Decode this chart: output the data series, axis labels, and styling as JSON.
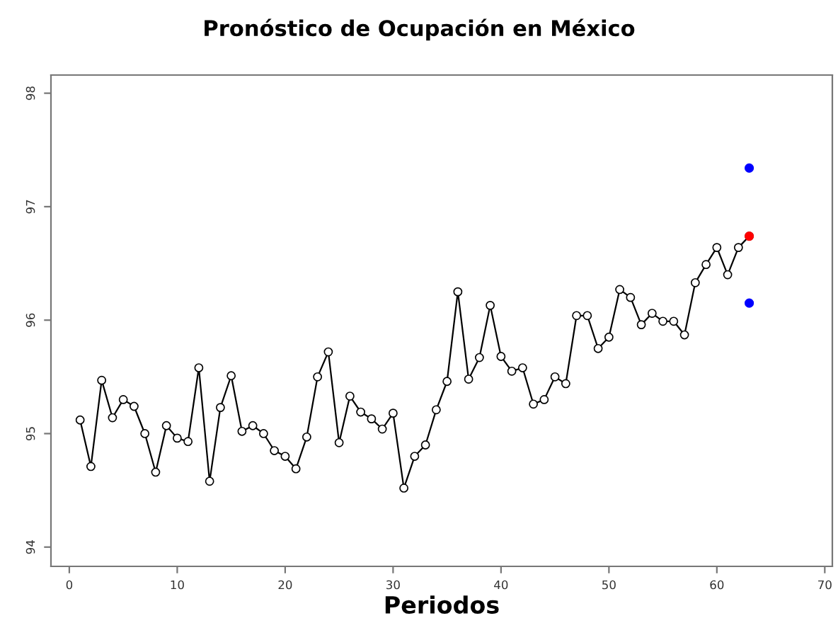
{
  "chart_data": {
    "type": "line",
    "title": "Pronóstico de Ocupación en México",
    "xlabel": "Periodos",
    "xlim": [
      -1.7,
      70.7
    ],
    "xticks": [
      0,
      10,
      20,
      30,
      40,
      50,
      60,
      70
    ],
    "ylim": [
      93.83,
      98.16
    ],
    "yticks": [
      94,
      95,
      96,
      97,
      98
    ],
    "grid": false,
    "legend": false,
    "series": [
      {
        "marker": "circle",
        "color": "#000000",
        "x": [
          1,
          2,
          3,
          4,
          5,
          6,
          7,
          8,
          9,
          10,
          11,
          12,
          13,
          14,
          15,
          16,
          17,
          18,
          19,
          20,
          21,
          22,
          23,
          24,
          25,
          26,
          27,
          28,
          29,
          30,
          31,
          32,
          33,
          34,
          35,
          36,
          37,
          38,
          39,
          40,
          41,
          42,
          43,
          44,
          45,
          46,
          47,
          48,
          49,
          50,
          51,
          52,
          53,
          54,
          55,
          56,
          57,
          58,
          59,
          60,
          61,
          62,
          63
        ],
        "values": [
          95.12,
          94.71,
          95.47,
          95.14,
          95.3,
          95.24,
          95.0,
          94.66,
          95.07,
          94.96,
          94.93,
          95.58,
          94.58,
          95.23,
          95.51,
          95.02,
          95.07,
          95.0,
          94.85,
          94.8,
          94.69,
          94.97,
          95.5,
          95.72,
          94.92,
          95.33,
          95.19,
          95.13,
          95.04,
          95.18,
          94.52,
          94.8,
          94.9,
          95.21,
          95.46,
          96.25,
          95.48,
          95.67,
          96.13,
          95.68,
          95.55,
          95.58,
          95.26,
          95.3,
          95.5,
          95.44,
          96.04,
          96.04,
          95.75,
          95.85,
          96.27,
          96.2,
          95.96,
          96.06,
          95.99,
          95.99,
          95.87,
          96.33,
          96.49,
          96.64,
          96.4,
          96.64,
          96.74
        ]
      },
      {
        "type": "scatter",
        "color": "#ff0000",
        "x": [
          63
        ],
        "values": [
          96.74
        ]
      },
      {
        "type": "scatter",
        "color": "#0000ff",
        "x": [
          63,
          63
        ],
        "values": [
          97.34,
          96.15
        ]
      }
    ]
  }
}
